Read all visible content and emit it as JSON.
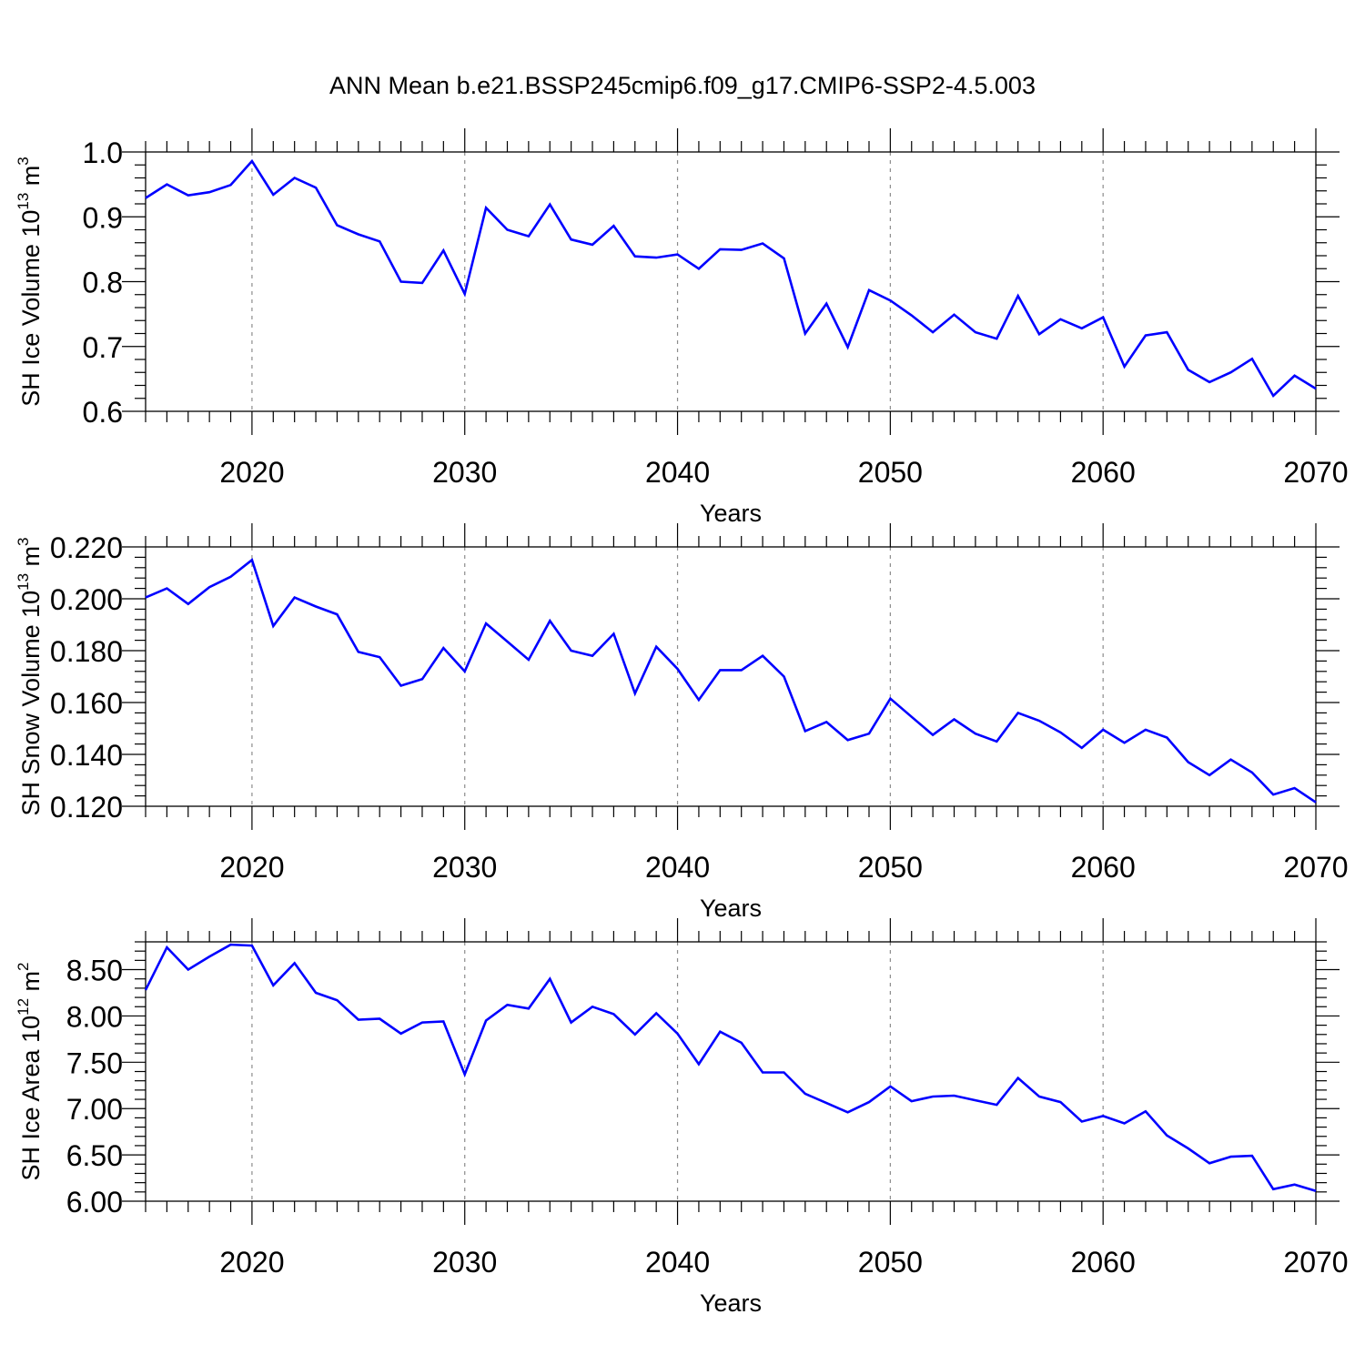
{
  "title": "ANN Mean b.e21.BSSP245cmip6.f09_g17.CMIP6-SSP2-4.5.003",
  "colors": {
    "line": "#0000ff",
    "frame": "#000000",
    "grid": "#8c8c8c"
  },
  "chart_data": [
    {
      "type": "line",
      "xlabel": "Years",
      "ylabel_main": "SH Ice Volume 10",
      "ylabel_exp": "13",
      "ylabel_unit": " m",
      "ylabel_unit_exp": "3",
      "xlim": [
        2015,
        2070
      ],
      "ylim": [
        0.6,
        1.0
      ],
      "xticks": [
        2020,
        2030,
        2040,
        2050,
        2060,
        2070
      ],
      "xtick_labels": [
        "2020",
        "2030",
        "2040",
        "2050",
        "2060",
        "2070"
      ],
      "yticks": [
        0.6,
        0.7,
        0.8,
        0.9,
        1.0
      ],
      "ytick_labels": [
        "0.6",
        "0.7",
        "0.8",
        "0.9",
        "1.0"
      ],
      "y_minor_step": 0.02,
      "grid": "vertical dashed at major x ticks",
      "x": [
        2015,
        2016,
        2017,
        2018,
        2019,
        2020,
        2021,
        2022,
        2023,
        2024,
        2025,
        2026,
        2027,
        2028,
        2029,
        2030,
        2031,
        2032,
        2033,
        2034,
        2035,
        2036,
        2037,
        2038,
        2039,
        2040,
        2041,
        2042,
        2043,
        2044,
        2045,
        2046,
        2047,
        2048,
        2049,
        2050,
        2051,
        2052,
        2053,
        2054,
        2055,
        2056,
        2057,
        2058,
        2059,
        2060,
        2061,
        2062,
        2063,
        2064,
        2065,
        2066,
        2067,
        2068,
        2069,
        2070
      ],
      "y": [
        0.929,
        0.95,
        0.933,
        0.938,
        0.949,
        0.986,
        0.934,
        0.96,
        0.945,
        0.887,
        0.873,
        0.862,
        0.8,
        0.798,
        0.848,
        0.781,
        0.914,
        0.88,
        0.87,
        0.919,
        0.865,
        0.857,
        0.886,
        0.839,
        0.837,
        0.842,
        0.82,
        0.85,
        0.849,
        0.859,
        0.836,
        0.72,
        0.766,
        0.699,
        0.787,
        0.771,
        0.748,
        0.722,
        0.749,
        0.722,
        0.712,
        0.778,
        0.719,
        0.742,
        0.728,
        0.745,
        0.669,
        0.717,
        0.722,
        0.664,
        0.645,
        0.66,
        0.681,
        0.624,
        0.655,
        0.635
      ]
    },
    {
      "type": "line",
      "xlabel": "Years",
      "ylabel_main": "SH Snow Volume 10",
      "ylabel_exp": "13",
      "ylabel_unit": " m",
      "ylabel_unit_exp": "3",
      "xlim": [
        2015,
        2070
      ],
      "ylim": [
        0.12,
        0.22
      ],
      "xticks": [
        2020,
        2030,
        2040,
        2050,
        2060,
        2070
      ],
      "xtick_labels": [
        "2020",
        "2030",
        "2040",
        "2050",
        "2060",
        "2070"
      ],
      "yticks": [
        0.12,
        0.14,
        0.16,
        0.18,
        0.2,
        0.22
      ],
      "ytick_labels": [
        "0.120",
        "0.140",
        "0.160",
        "0.180",
        "0.200",
        "0.220"
      ],
      "y_minor_step": 0.004,
      "grid": "vertical dashed at major x ticks",
      "x": [
        2015,
        2016,
        2017,
        2018,
        2019,
        2020,
        2021,
        2022,
        2023,
        2024,
        2025,
        2026,
        2027,
        2028,
        2029,
        2030,
        2031,
        2032,
        2033,
        2034,
        2035,
        2036,
        2037,
        2038,
        2039,
        2040,
        2041,
        2042,
        2043,
        2044,
        2045,
        2046,
        2047,
        2048,
        2049,
        2050,
        2051,
        2052,
        2053,
        2054,
        2055,
        2056,
        2057,
        2058,
        2059,
        2060,
        2061,
        2062,
        2063,
        2064,
        2065,
        2066,
        2067,
        2068,
        2069,
        2070
      ],
      "y": [
        0.2005,
        0.204,
        0.198,
        0.2045,
        0.2085,
        0.215,
        0.1895,
        0.2005,
        0.197,
        0.194,
        0.1795,
        0.1775,
        0.1665,
        0.169,
        0.181,
        0.172,
        0.1905,
        0.1835,
        0.1765,
        0.1915,
        0.18,
        0.178,
        0.1865,
        0.1635,
        0.1815,
        0.173,
        0.161,
        0.1725,
        0.1725,
        0.178,
        0.17,
        0.149,
        0.1525,
        0.1455,
        0.148,
        0.1615,
        0.1545,
        0.1475,
        0.1535,
        0.148,
        0.145,
        0.156,
        0.153,
        0.1485,
        0.1425,
        0.1495,
        0.1445,
        0.1495,
        0.1465,
        0.137,
        0.132,
        0.138,
        0.133,
        0.1245,
        0.127,
        0.1215
      ]
    },
    {
      "type": "line",
      "xlabel": "Years",
      "ylabel_main": "SH Ice Area 10",
      "ylabel_exp": "12",
      "ylabel_unit": " m",
      "ylabel_unit_exp": "2",
      "xlim": [
        2015,
        2070
      ],
      "ylim": [
        6.0,
        8.8
      ],
      "xticks": [
        2020,
        2030,
        2040,
        2050,
        2060,
        2070
      ],
      "xtick_labels": [
        "2020",
        "2030",
        "2040",
        "2050",
        "2060",
        "2070"
      ],
      "yticks": [
        6.0,
        6.5,
        7.0,
        7.5,
        8.0,
        8.5
      ],
      "ytick_labels": [
        "6.00",
        "6.50",
        "7.00",
        "7.50",
        "8.00",
        "8.50"
      ],
      "y_minor_step": 0.1,
      "grid": "vertical dashed at major x ticks",
      "x": [
        2015,
        2016,
        2017,
        2018,
        2019,
        2020,
        2021,
        2022,
        2023,
        2024,
        2025,
        2026,
        2027,
        2028,
        2029,
        2030,
        2031,
        2032,
        2033,
        2034,
        2035,
        2036,
        2037,
        2038,
        2039,
        2040,
        2041,
        2042,
        2043,
        2044,
        2045,
        2046,
        2047,
        2048,
        2049,
        2050,
        2051,
        2052,
        2053,
        2054,
        2055,
        2056,
        2057,
        2058,
        2059,
        2060,
        2061,
        2062,
        2063,
        2064,
        2065,
        2066,
        2067,
        2068,
        2069,
        2070
      ],
      "y": [
        8.28,
        8.74,
        8.5,
        8.64,
        8.77,
        8.76,
        8.33,
        8.57,
        8.25,
        8.17,
        7.96,
        7.97,
        7.81,
        7.93,
        7.94,
        7.37,
        7.95,
        8.12,
        8.08,
        8.4,
        7.93,
        8.1,
        8.02,
        7.8,
        8.03,
        7.81,
        7.48,
        7.83,
        7.71,
        7.39,
        7.39,
        7.16,
        7.06,
        6.96,
        7.07,
        7.24,
        7.08,
        7.13,
        7.14,
        7.09,
        7.04,
        7.33,
        7.13,
        7.07,
        6.86,
        6.92,
        6.84,
        6.97,
        6.71,
        6.57,
        6.41,
        6.48,
        6.49,
        6.13,
        6.18,
        6.11
      ]
    }
  ]
}
